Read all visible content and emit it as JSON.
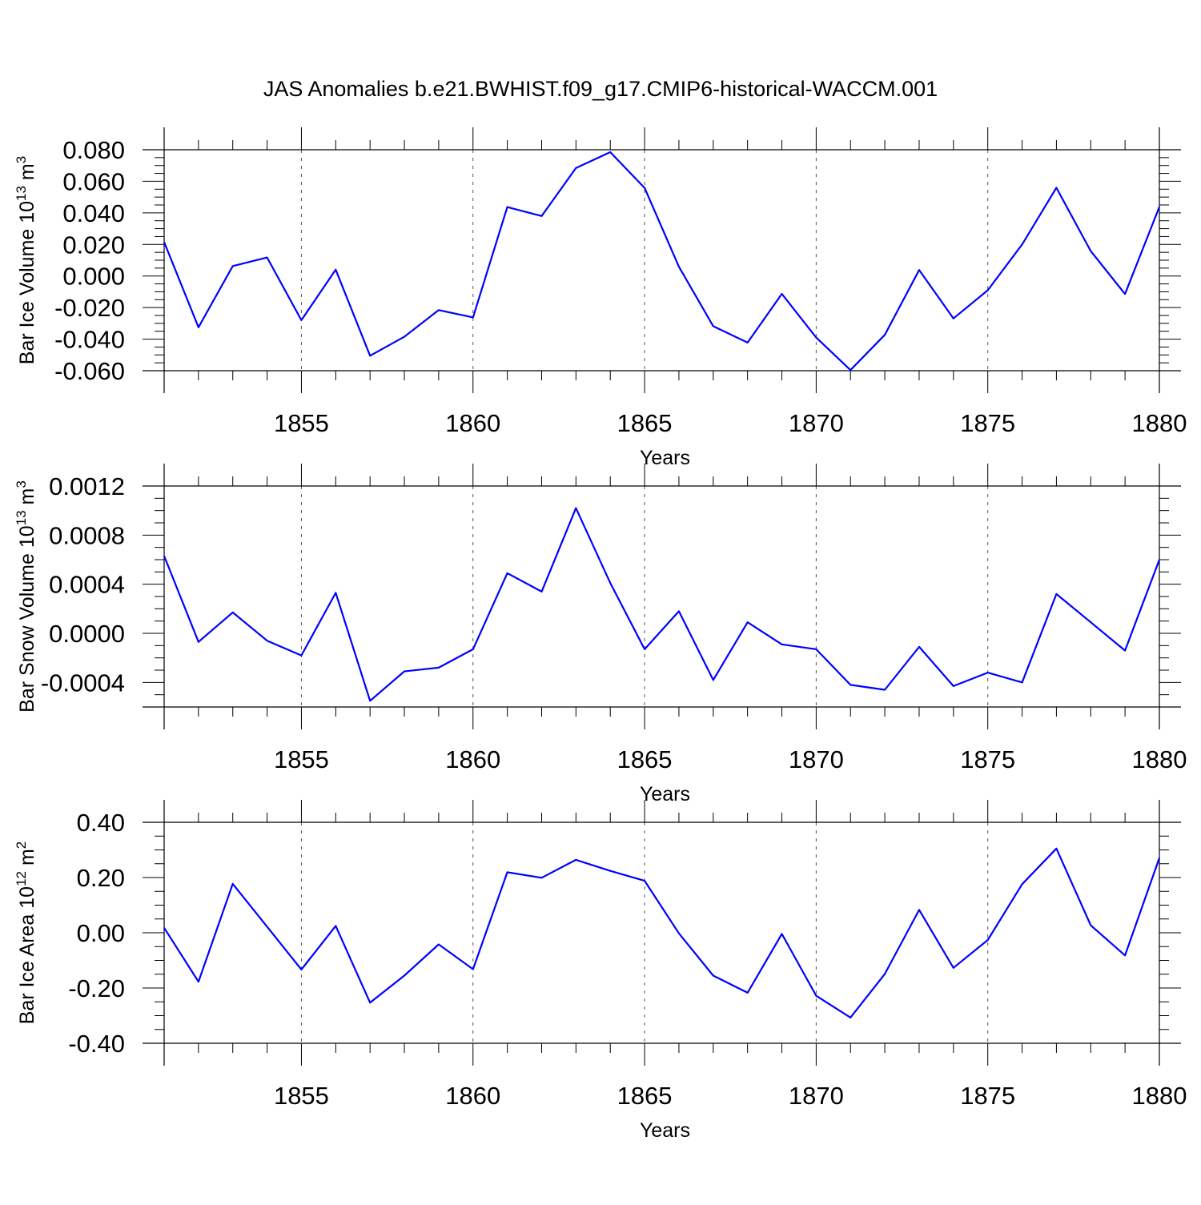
{
  "title": "JAS Anomalies b.e21.BWHIST.f09_g17.CMIP6-historical-WACCM.001",
  "colors": {
    "line": "#0000ff",
    "axis": "#000000",
    "grid": "#555555"
  },
  "chart_data": [
    {
      "type": "line",
      "name": "ice-volume",
      "ylabel": "Bar Ice Volume 10",
      "ylabel_exp": "13",
      "ylabel_unit": "m",
      "ylabel_unit_exp": "3",
      "xlabel": "Years",
      "xlim": [
        1851,
        1880
      ],
      "ylim": [
        -0.06,
        0.08
      ],
      "yticks": [
        -0.06,
        -0.04,
        -0.02,
        0.0,
        0.02,
        0.04,
        0.06,
        0.08
      ],
      "ytick_labels": [
        "-0.060",
        "-0.040",
        "-0.020",
        "0.000",
        "0.020",
        "0.040",
        "0.060",
        "0.080"
      ],
      "ymin_step": 0.005,
      "xticks": [
        1855,
        1860,
        1865,
        1870,
        1875,
        1880
      ],
      "xtick_labels": [
        "1855",
        "1860",
        "1865",
        "1870",
        "1875",
        "1880"
      ],
      "grid_x": [
        1855,
        1860,
        1865,
        1870,
        1875
      ],
      "x": [
        1851,
        1852,
        1853,
        1854,
        1855,
        1856,
        1857,
        1858,
        1859,
        1860,
        1861,
        1862,
        1863,
        1864,
        1865,
        1866,
        1867,
        1868,
        1869,
        1870,
        1871,
        1872,
        1873,
        1874,
        1875,
        1876,
        1877,
        1878,
        1879,
        1880
      ],
      "values": [
        0.0215,
        -0.0325,
        0.0063,
        0.0117,
        -0.028,
        0.004,
        -0.0505,
        -0.0385,
        -0.0216,
        -0.0262,
        0.0437,
        0.038,
        0.0684,
        0.0785,
        0.0558,
        0.0059,
        -0.0318,
        -0.0422,
        -0.0113,
        -0.039,
        -0.0596,
        -0.0373,
        0.0038,
        -0.0269,
        -0.009,
        0.02,
        0.0559,
        0.0158,
        -0.0114,
        0.0438
      ]
    },
    {
      "type": "line",
      "name": "snow-volume",
      "ylabel": "Bar Snow Volume 10",
      "ylabel_exp": "13",
      "ylabel_unit": "m",
      "ylabel_unit_exp": "3",
      "xlabel": "Years",
      "xlim": [
        1851,
        1880
      ],
      "ylim": [
        -0.0006,
        0.0012
      ],
      "yticks": [
        -0.0004,
        0.0,
        0.0004,
        0.0008,
        0.0012
      ],
      "ytick_labels": [
        "-0.0004",
        "0.0000",
        "0.0004",
        "0.0008",
        "0.0012"
      ],
      "ymin_step": 0.0001,
      "xticks": [
        1855,
        1860,
        1865,
        1870,
        1875,
        1880
      ],
      "xtick_labels": [
        "1855",
        "1860",
        "1865",
        "1870",
        "1875",
        "1880"
      ],
      "grid_x": [
        1855,
        1860,
        1865,
        1870,
        1875
      ],
      "x": [
        1851,
        1852,
        1853,
        1854,
        1855,
        1856,
        1857,
        1858,
        1859,
        1860,
        1861,
        1862,
        1863,
        1864,
        1865,
        1866,
        1867,
        1868,
        1869,
        1870,
        1871,
        1872,
        1873,
        1874,
        1875,
        1876,
        1877,
        1878,
        1879,
        1880
      ],
      "values": [
        0.00063,
        -7e-05,
        0.00017,
        -6e-05,
        -0.00018,
        0.00033,
        -0.00055,
        -0.00031,
        -0.00028,
        -0.00013,
        0.00049,
        0.00034,
        0.00102,
        0.00041,
        -0.00013,
        0.00018,
        -0.00038,
        9e-05,
        -9e-05,
        -0.00013,
        -0.00042,
        -0.00046,
        -0.00011,
        -0.00043,
        -0.00032,
        -0.0004,
        0.00032,
        9e-05,
        -0.00014,
        0.0006
      ]
    },
    {
      "type": "line",
      "name": "ice-area",
      "ylabel": "Bar Ice Area 10",
      "ylabel_exp": "12",
      "ylabel_unit": "m",
      "ylabel_unit_exp": "2",
      "xlabel": "Years",
      "xlim": [
        1851,
        1880
      ],
      "ylim": [
        -0.4,
        0.4
      ],
      "yticks": [
        -0.4,
        -0.2,
        0.0,
        0.2,
        0.4
      ],
      "ytick_labels": [
        "-0.40",
        "-0.20",
        "0.00",
        "0.20",
        "0.40"
      ],
      "ymin_step": 0.05,
      "xticks": [
        1855,
        1860,
        1865,
        1870,
        1875,
        1880
      ],
      "xtick_labels": [
        "1855",
        "1860",
        "1865",
        "1870",
        "1875",
        "1880"
      ],
      "grid_x": [
        1855,
        1860,
        1865,
        1870,
        1875
      ],
      "x": [
        1851,
        1852,
        1853,
        1854,
        1855,
        1856,
        1857,
        1858,
        1859,
        1860,
        1861,
        1862,
        1863,
        1864,
        1865,
        1866,
        1867,
        1868,
        1869,
        1870,
        1871,
        1872,
        1873,
        1874,
        1875,
        1876,
        1877,
        1878,
        1879,
        1880
      ],
      "values": [
        0.018,
        -0.177,
        0.177,
        0.022,
        -0.133,
        0.025,
        -0.253,
        -0.155,
        -0.042,
        -0.132,
        0.219,
        0.199,
        0.264,
        0.224,
        0.188,
        -0.002,
        -0.155,
        -0.217,
        -0.004,
        -0.228,
        -0.307,
        -0.149,
        0.083,
        -0.127,
        -0.026,
        0.176,
        0.305,
        0.027,
        -0.082,
        0.271
      ]
    }
  ]
}
